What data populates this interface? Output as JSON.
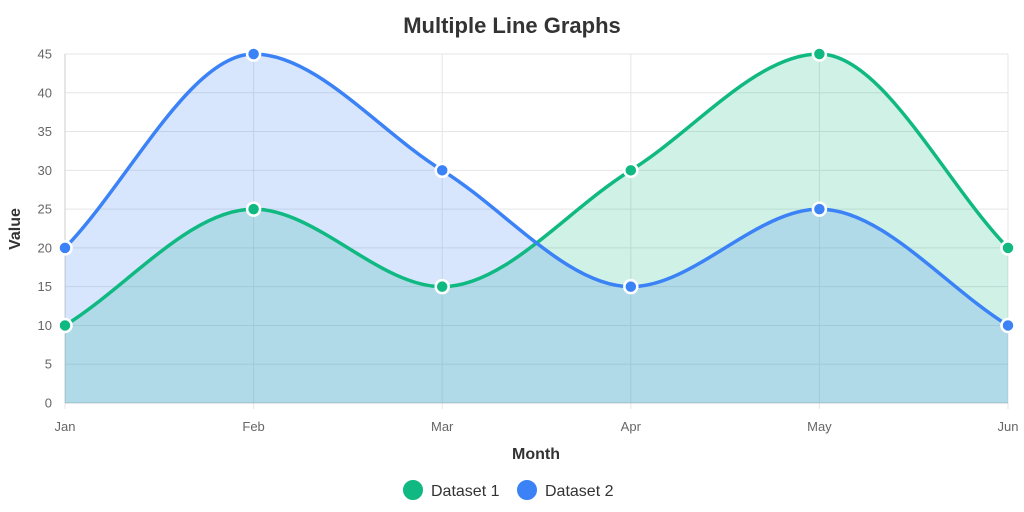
{
  "chart_data": {
    "type": "area",
    "title": "Multiple Line Graphs",
    "xlabel": "Month",
    "ylabel": "Value",
    "categories": [
      "Jan",
      "Feb",
      "Mar",
      "Apr",
      "May",
      "Jun"
    ],
    "ylim": [
      0,
      45
    ],
    "yticks": [
      0,
      5,
      10,
      15,
      20,
      25,
      30,
      35,
      40,
      45
    ],
    "grid": true,
    "legend_position": "bottom",
    "series": [
      {
        "name": "Dataset 1",
        "values": [
          10,
          25,
          15,
          30,
          45,
          20
        ],
        "color": "#10b981",
        "fill": "rgba(16,185,129,0.2)"
      },
      {
        "name": "Dataset 2",
        "values": [
          20,
          45,
          30,
          15,
          25,
          10
        ],
        "color": "#3b82f6",
        "fill": "rgba(59,130,246,0.2)"
      }
    ]
  }
}
